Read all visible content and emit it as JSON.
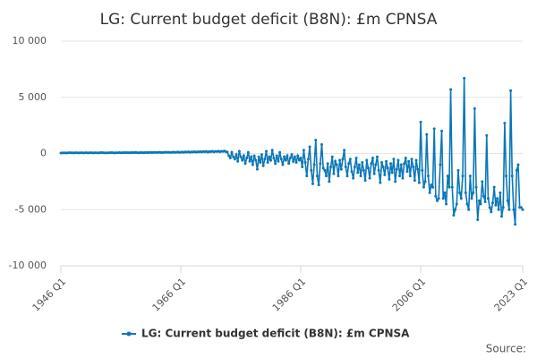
{
  "chart_data": {
    "type": "line",
    "title": "LG: Current budget deficit (B8N): £m CPNSA",
    "source": "Source:",
    "x": [
      "1946 Q1",
      null,
      null,
      null,
      null,
      null,
      null,
      null,
      null,
      null,
      null,
      null,
      null,
      null,
      null,
      null,
      null,
      null,
      null,
      null,
      null,
      null,
      null,
      null,
      null,
      null,
      null,
      null,
      null,
      null,
      null,
      null,
      null,
      null,
      null,
      null,
      null,
      null,
      null,
      null,
      null,
      null,
      null,
      null,
      null,
      null,
      null,
      null,
      null,
      null,
      null,
      null,
      null,
      null,
      null,
      null,
      null,
      null,
      null,
      null,
      null,
      null,
      null,
      null,
      null,
      null,
      null,
      null,
      null,
      null,
      null,
      null,
      null,
      null,
      null,
      null,
      null,
      null,
      null,
      null,
      "1966 Q1",
      null,
      null,
      null,
      null,
      null,
      null,
      null,
      null,
      null,
      null,
      null,
      null,
      null,
      null,
      null,
      null,
      null,
      null,
      null,
      null,
      null,
      null,
      null,
      null,
      null,
      null,
      null,
      null,
      null,
      null,
      null,
      null,
      null,
      null,
      null,
      null,
      null,
      null,
      null,
      null,
      null,
      null,
      null,
      null,
      null,
      null,
      null,
      null,
      null,
      null,
      null,
      null,
      null,
      null,
      null,
      null,
      null,
      null,
      null,
      null,
      null,
      null,
      null,
      null,
      null,
      null,
      null,
      null,
      null,
      null,
      null,
      null,
      null,
      null,
      null,
      null,
      null,
      null,
      null,
      "1986 Q1",
      null,
      null,
      null,
      null,
      null,
      null,
      null,
      null,
      null,
      null,
      null,
      null,
      null,
      null,
      null,
      null,
      null,
      null,
      null,
      null,
      null,
      null,
      null,
      null,
      null,
      null,
      null,
      null,
      null,
      null,
      null,
      null,
      null,
      null,
      null,
      null,
      null,
      null,
      null,
      null,
      null,
      null,
      null,
      null,
      null,
      null,
      null,
      null,
      null,
      null,
      null,
      null,
      null,
      null,
      null,
      null,
      null,
      null,
      null,
      null,
      null,
      null,
      null,
      null,
      null,
      null,
      null,
      null,
      null,
      null,
      null,
      null,
      null,
      null,
      null,
      null,
      null,
      null,
      null,
      "2006 Q1",
      null,
      null,
      null,
      null,
      null,
      null,
      null,
      null,
      null,
      null,
      null,
      null,
      null,
      null,
      null,
      null,
      null,
      null,
      null,
      null,
      null,
      null,
      null,
      null,
      null,
      null,
      null,
      null,
      null,
      null,
      null,
      null,
      null,
      null,
      null,
      null,
      null,
      null,
      null,
      null,
      null,
      null,
      null,
      null,
      null,
      null,
      null,
      null,
      null,
      null,
      null,
      null,
      null,
      null,
      null,
      null,
      null,
      null,
      null,
      null,
      null,
      null,
      null,
      null,
      null,
      null,
      null,
      "2023 Q1"
    ],
    "series": [
      {
        "name": "LG: Current budget deficit (B8N): £m CPNSA",
        "color": "#0b77b8",
        "values": [
          40,
          50,
          60,
          50,
          50,
          60,
          70,
          60,
          60,
          50,
          70,
          60,
          50,
          60,
          70,
          50,
          60,
          70,
          50,
          60,
          70,
          60,
          50,
          70,
          60,
          50,
          70,
          80,
          70,
          60,
          50,
          60,
          60,
          70,
          80,
          60,
          50,
          70,
          60,
          80,
          60,
          70,
          80,
          70,
          80,
          70,
          60,
          90,
          70,
          80,
          90,
          70,
          60,
          90,
          80,
          70,
          80,
          90,
          70,
          100,
          90,
          80,
          100,
          90,
          100,
          90,
          110,
          80,
          90,
          100,
          120,
          100,
          110,
          90,
          100,
          120,
          100,
          110,
          130,
          100,
          110,
          130,
          100,
          140,
          120,
          150,
          110,
          140,
          130,
          160,
          120,
          150,
          140,
          170,
          130,
          180,
          150,
          190,
          120,
          170,
          160,
          200,
          140,
          190,
          170,
          210,
          150,
          200,
          180,
          220,
          160,
          130,
          -200,
          -400,
          100,
          -300,
          -500,
          -100,
          -700,
          200,
          -300,
          -600,
          -200,
          -900,
          -400,
          100,
          -700,
          -300,
          -1000,
          -200,
          -600,
          -1400,
          -300,
          -800,
          -100,
          -1100,
          -500,
          200,
          -800,
          -300,
          -600,
          300,
          -400,
          -900,
          -200,
          -700,
          100,
          -500,
          -1000,
          -300,
          -600,
          -200,
          -900,
          -400,
          -100,
          -700,
          -300,
          -800,
          -200,
          -600,
          -400,
          -1200,
          300,
          -800,
          -2000,
          -500,
          600,
          -1500,
          -2700,
          -1000,
          1200,
          -2000,
          -2800,
          -900,
          800,
          -1300,
          -1500,
          -2000,
          -900,
          -2500,
          -1200,
          -300,
          -1800,
          -700,
          -1000,
          -2000,
          -600,
          -1400,
          -500,
          300,
          -1200,
          -2000,
          -900,
          -500,
          -1600,
          -2200,
          -1200,
          -400,
          -1700,
          -1000,
          -2000,
          -800,
          -1500,
          -2400,
          -600,
          -1300,
          -2200,
          -900,
          -400,
          -1800,
          -1000,
          -300,
          -1500,
          -2600,
          -800,
          -1200,
          -1900,
          -700,
          -1300,
          -2300,
          -900,
          -1700,
          -500,
          -2500,
          -1400,
          -600,
          -2000,
          -1000,
          -2200,
          -900,
          -400,
          -1600,
          -700,
          -2000,
          -500,
          -1200,
          -2400,
          -600,
          -1400,
          -2600,
          2800,
          -1500,
          -3000,
          -2500,
          1700,
          -2000,
          -3500,
          -2800,
          -3000,
          2200,
          -3800,
          -4200,
          -4000,
          -1000,
          2000,
          -4000,
          -3500,
          -4500,
          -2000,
          -3000,
          5700,
          -3000,
          -5500,
          -5000,
          -4500,
          -1500,
          -3500,
          -4000,
          -2000,
          6700,
          -3500,
          -4500,
          -5000,
          -2000,
          -4000,
          -3500,
          4000,
          -3000,
          -5900,
          -4200,
          -4500,
          -2500,
          -3800,
          -4300,
          1600,
          -4000,
          -4800,
          -5200,
          -4400,
          -3000,
          -4600,
          -4000,
          -5000,
          -3500,
          -5600,
          -4800,
          2700,
          -2000,
          -4200,
          -5000,
          5600,
          -2000,
          -5000,
          -6300,
          -1500,
          -1000,
          -4800,
          -4800,
          -5000
        ]
      }
    ],
    "ylim": [
      -10000,
      10000
    ],
    "yticks": [
      {
        "value": -10000,
        "label": "-10 000"
      },
      {
        "value": -5000,
        "label": "-5 000"
      },
      0,
      {
        "value": 5000,
        "label": "5 000"
      },
      {
        "value": 10000,
        "label": "10 000"
      }
    ],
    "grid": true,
    "legend": "bottom"
  }
}
